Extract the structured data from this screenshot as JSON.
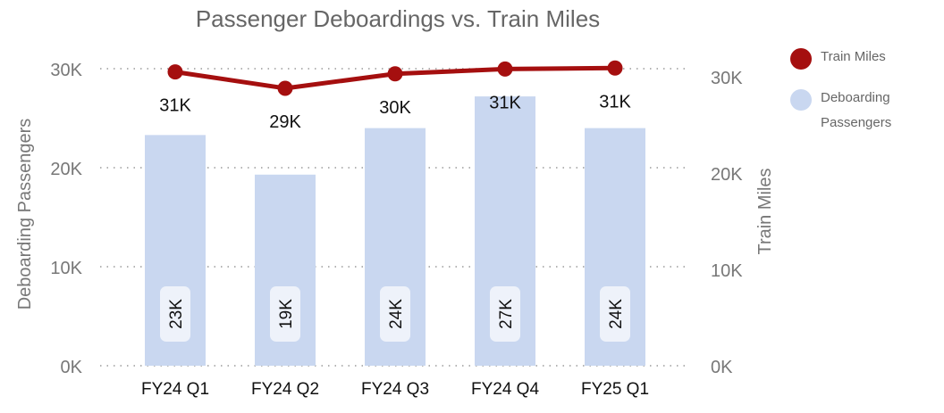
{
  "chart_data": {
    "type": "bar+line",
    "title": "Passenger Deboardings vs. Train Miles",
    "categories": [
      "FY24 Q1",
      "FY24 Q2",
      "FY24 Q3",
      "FY24 Q4",
      "FY25 Q1"
    ],
    "series": [
      {
        "name": "Deboarding Passengers",
        "type": "bar",
        "axis": "left",
        "color": "#c9d7f0",
        "values": [
          23300,
          19300,
          24000,
          27200,
          24000
        ],
        "labels": [
          "23K",
          "19K",
          "24K",
          "27K",
          "24K"
        ]
      },
      {
        "name": "Train Miles",
        "type": "line",
        "axis": "right",
        "color": "#a50f0f",
        "values": [
          30500,
          28800,
          30300,
          30800,
          30900
        ],
        "labels": [
          "31K",
          "29K",
          "30K",
          "31K",
          "31K"
        ]
      }
    ],
    "y_left": {
      "label": "Deboarding Passengers",
      "ylim": [
        0,
        30000
      ],
      "ticks": [
        "0K",
        "10K",
        "20K",
        "30K"
      ]
    },
    "y_right": {
      "label": "Train Miles",
      "ylim": [
        0,
        30000
      ],
      "ticks": [
        "0K",
        "10K",
        "20K",
        "30K"
      ]
    },
    "grid": true,
    "legend": "right"
  }
}
